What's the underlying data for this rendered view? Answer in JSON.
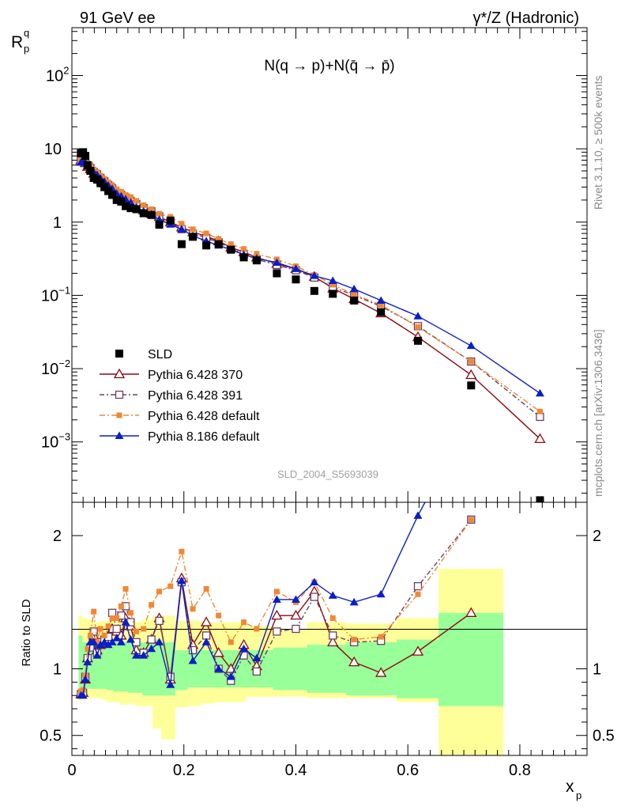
{
  "chart_data": [
    {
      "type": "scatter",
      "panel": "main",
      "title_left": "91 GeV ee",
      "title_right": "γ*/Z (Hadronic)",
      "process": "N(q → p)+N(q̄ → p̄)",
      "ylabel": "R",
      "ylabel_sup": "q",
      "ylabel_sub": "p",
      "yscale": "log",
      "ylim": [
        0.00015,
        450
      ],
      "xlim": [
        0,
        0.92
      ],
      "yticks": [
        {
          "v": 100,
          "base": "10",
          "exp": "2"
        },
        {
          "v": 10,
          "base": "10",
          "exp": ""
        },
        {
          "v": 1,
          "base": "1",
          "exp": ""
        },
        {
          "v": 0.1,
          "base": "10",
          "exp": "−1"
        },
        {
          "v": 0.01,
          "base": "10",
          "exp": "−2"
        },
        {
          "v": 0.001,
          "base": "10",
          "exp": "−3"
        }
      ],
      "analysis": "SLD_2004_S5693039",
      "x": [
        0.016,
        0.02,
        0.024,
        0.028,
        0.033,
        0.039,
        0.045,
        0.051,
        0.058,
        0.065,
        0.072,
        0.08,
        0.088,
        0.096,
        0.105,
        0.115,
        0.128,
        0.142,
        0.156,
        0.176,
        0.196,
        0.216,
        0.24,
        0.262,
        0.284,
        0.307,
        0.33,
        0.366,
        0.4,
        0.433,
        0.466,
        0.504,
        0.552,
        0.618,
        0.713,
        0.836
      ],
      "series": [
        {
          "name": "SLD",
          "marker": "square",
          "color": "#000000",
          "values": [
            8.7,
            9.0,
            8.0,
            6.0,
            5.0,
            4.0,
            3.8,
            3.4,
            3.0,
            2.65,
            2.35,
            2.0,
            1.9,
            1.65,
            1.55,
            1.5,
            1.32,
            1.25,
            0.92,
            1.05,
            0.5,
            0.63,
            0.48,
            0.5,
            0.42,
            0.33,
            0.3,
            0.2,
            0.165,
            0.115,
            0.105,
            0.085,
            0.059,
            0.024,
            0.0059,
            0.00016
          ]
        },
        {
          "name": "Pythia 6.428 370",
          "marker": "triangle-open",
          "color": "#8b0a13",
          "values": [
            7.0,
            7.2,
            6.4,
            5.7,
            5.3,
            4.6,
            4.2,
            3.8,
            3.4,
            3.0,
            2.7,
            2.35,
            2.17,
            2.0,
            1.85,
            1.65,
            1.45,
            1.3,
            1.18,
            1.0,
            0.85,
            0.73,
            0.64,
            0.55,
            0.45,
            0.39,
            0.33,
            0.27,
            0.23,
            0.18,
            0.125,
            0.089,
            0.057,
            0.027,
            0.0082,
            0.0011
          ]
        },
        {
          "name": "Pythia 6.428 391",
          "marker": "square-open",
          "color": "#694062",
          "values": [
            7.0,
            7.2,
            6.5,
            5.9,
            5.5,
            4.8,
            4.5,
            4.0,
            3.6,
            3.2,
            2.9,
            2.5,
            2.35,
            2.15,
            1.95,
            1.75,
            1.55,
            1.4,
            1.2,
            0.98,
            0.8,
            0.7,
            0.61,
            0.53,
            0.43,
            0.37,
            0.31,
            0.26,
            0.22,
            0.175,
            0.13,
            0.1,
            0.071,
            0.038,
            0.0125,
            0.0022
          ]
        },
        {
          "name": "Pythia 6.428 default",
          "marker": "square-filled",
          "color": "#f28733",
          "values": [
            7.2,
            7.5,
            6.7,
            6.3,
            6.1,
            5.2,
            4.8,
            4.3,
            3.9,
            3.5,
            3.2,
            2.8,
            2.6,
            2.35,
            2.2,
            1.95,
            1.7,
            1.5,
            1.3,
            1.18,
            0.95,
            0.8,
            0.7,
            0.59,
            0.5,
            0.43,
            0.37,
            0.31,
            0.25,
            0.19,
            0.14,
            0.103,
            0.074,
            0.037,
            0.0125,
            0.0026
          ]
        },
        {
          "name": "Pythia 8.186 default",
          "marker": "triangle-filled",
          "color": "#0a1ec8",
          "values": [
            6.5,
            7.0,
            6.5,
            5.8,
            5.4,
            4.8,
            4.4,
            3.95,
            3.55,
            3.15,
            2.85,
            2.45,
            2.25,
            2.05,
            1.85,
            1.6,
            1.4,
            1.28,
            1.08,
            0.93,
            0.8,
            0.65,
            0.55,
            0.48,
            0.42,
            0.36,
            0.32,
            0.28,
            0.23,
            0.185,
            0.158,
            0.122,
            0.085,
            0.052,
            0.0205,
            0.0046
          ]
        }
      ]
    },
    {
      "type": "line",
      "panel": "ratio",
      "ylabel": "Ratio to SLD",
      "ylim": [
        0.35,
        2.25
      ],
      "yticks": [
        "0.5",
        "1",
        "2"
      ],
      "xlabel": "x",
      "xlabel_sub": "p",
      "xticks": [
        "0",
        "0.2",
        "0.4",
        "0.6",
        "0.8"
      ],
      "x": [
        0.016,
        0.02,
        0.024,
        0.028,
        0.033,
        0.039,
        0.045,
        0.051,
        0.058,
        0.065,
        0.072,
        0.08,
        0.088,
        0.096,
        0.105,
        0.115,
        0.128,
        0.142,
        0.156,
        0.176,
        0.196,
        0.216,
        0.24,
        0.262,
        0.284,
        0.307,
        0.33,
        0.366,
        0.4,
        0.433,
        0.466,
        0.504,
        0.552,
        0.618,
        0.713
      ],
      "series": [
        {
          "name": "Pythia 6.428 370",
          "values": [
            0.81,
            0.82,
            0.92,
            1.08,
            1.18,
            1.25,
            1.14,
            1.18,
            1.2,
            1.22,
            1.3,
            1.28,
            1.25,
            1.38,
            1.32,
            1.14,
            1.12,
            1.22,
            1.38,
            0.92,
            1.68,
            1.18,
            1.35,
            1.12,
            1.0,
            1.18,
            1.02,
            1.4,
            1.4,
            1.58,
            1.2,
            1.05,
            0.97,
            1.13,
            1.42
          ]
        },
        {
          "name": "Pythia 6.428 391",
          "values": [
            0.81,
            0.82,
            0.94,
            1.08,
            1.16,
            1.28,
            1.12,
            1.2,
            1.22,
            1.24,
            1.42,
            1.3,
            1.4,
            1.47,
            1.35,
            1.2,
            1.12,
            1.22,
            1.36,
            0.94,
            1.65,
            1.14,
            1.25,
            1.0,
            0.91,
            1.1,
            0.98,
            1.28,
            1.3,
            1.54,
            1.25,
            1.2,
            1.21,
            1.62,
            2.12
          ]
        },
        {
          "name": "Pythia 6.428 default",
          "values": [
            0.83,
            0.84,
            0.95,
            1.15,
            1.25,
            1.43,
            1.2,
            1.3,
            1.25,
            1.32,
            1.38,
            1.38,
            1.47,
            1.6,
            1.42,
            1.28,
            1.3,
            1.48,
            1.58,
            1.62,
            1.88,
            1.45,
            1.6,
            1.4,
            1.2,
            1.35,
            1.3,
            1.58,
            1.5,
            1.65,
            1.38,
            1.22,
            1.24,
            1.56,
            2.12
          ]
        },
        {
          "name": "Pythia 8.186 default",
          "values": [
            0.8,
            0.8,
            0.92,
            1.05,
            1.2,
            1.2,
            1.1,
            1.18,
            1.2,
            1.18,
            1.2,
            1.23,
            1.2,
            1.35,
            1.22,
            1.1,
            1.1,
            1.15,
            1.2,
            0.88,
            1.66,
            1.06,
            1.2,
            1.0,
            0.94,
            1.15,
            1.08,
            1.52,
            1.52,
            1.65,
            1.55,
            1.5,
            1.56,
            2.15,
            2.9
          ]
        }
      ],
      "band_x_edges": [
        0.012,
        0.018,
        0.026,
        0.038,
        0.05,
        0.062,
        0.074,
        0.086,
        0.1,
        0.112,
        0.126,
        0.144,
        0.16,
        0.184,
        0.206,
        0.23,
        0.255,
        0.28,
        0.31,
        0.36,
        0.42,
        0.49,
        0.58,
        0.655,
        0.77
      ],
      "band_inner": [
        [
          0.78,
          1.25
        ],
        [
          0.85,
          1.2
        ],
        [
          0.85,
          1.2
        ],
        [
          0.85,
          1.18
        ],
        [
          0.85,
          1.16
        ],
        [
          0.84,
          1.17
        ],
        [
          0.83,
          1.2
        ],
        [
          0.83,
          1.2
        ],
        [
          0.82,
          1.2
        ],
        [
          0.82,
          1.2
        ],
        [
          0.8,
          1.2
        ],
        [
          0.8,
          1.22
        ],
        [
          0.8,
          1.2
        ],
        [
          0.84,
          1.14
        ],
        [
          0.86,
          1.14
        ],
        [
          0.86,
          1.14
        ],
        [
          0.86,
          1.14
        ],
        [
          0.86,
          1.14
        ],
        [
          0.86,
          1.14
        ],
        [
          0.84,
          1.16
        ],
        [
          0.82,
          1.18
        ],
        [
          0.8,
          1.2
        ],
        [
          0.78,
          1.22
        ],
        [
          0.72,
          1.42
        ]
      ],
      "band_outer": [
        [
          0.76,
          1.4
        ],
        [
          0.8,
          1.38
        ],
        [
          0.78,
          1.37
        ],
        [
          0.78,
          1.35
        ],
        [
          0.77,
          1.36
        ],
        [
          0.75,
          1.36
        ],
        [
          0.75,
          1.37
        ],
        [
          0.73,
          1.38
        ],
        [
          0.74,
          1.38
        ],
        [
          0.72,
          1.35
        ],
        [
          0.72,
          1.37
        ],
        [
          0.55,
          1.4
        ],
        [
          0.47,
          1.4
        ],
        [
          0.71,
          1.36
        ],
        [
          0.72,
          1.36
        ],
        [
          0.74,
          1.35
        ],
        [
          0.75,
          1.35
        ],
        [
          0.75,
          1.35
        ],
        [
          0.79,
          1.32
        ],
        [
          0.79,
          1.3
        ],
        [
          0.78,
          1.35
        ],
        [
          0.78,
          1.34
        ],
        [
          0.75,
          1.38
        ],
        [
          0.34,
          1.75
        ]
      ]
    }
  ],
  "side_text": {
    "rivet": "Rivet 3.1.10, ≥ 500k events",
    "mcplots": "mcplots.cern.ch [arXiv:1306.3436]"
  }
}
